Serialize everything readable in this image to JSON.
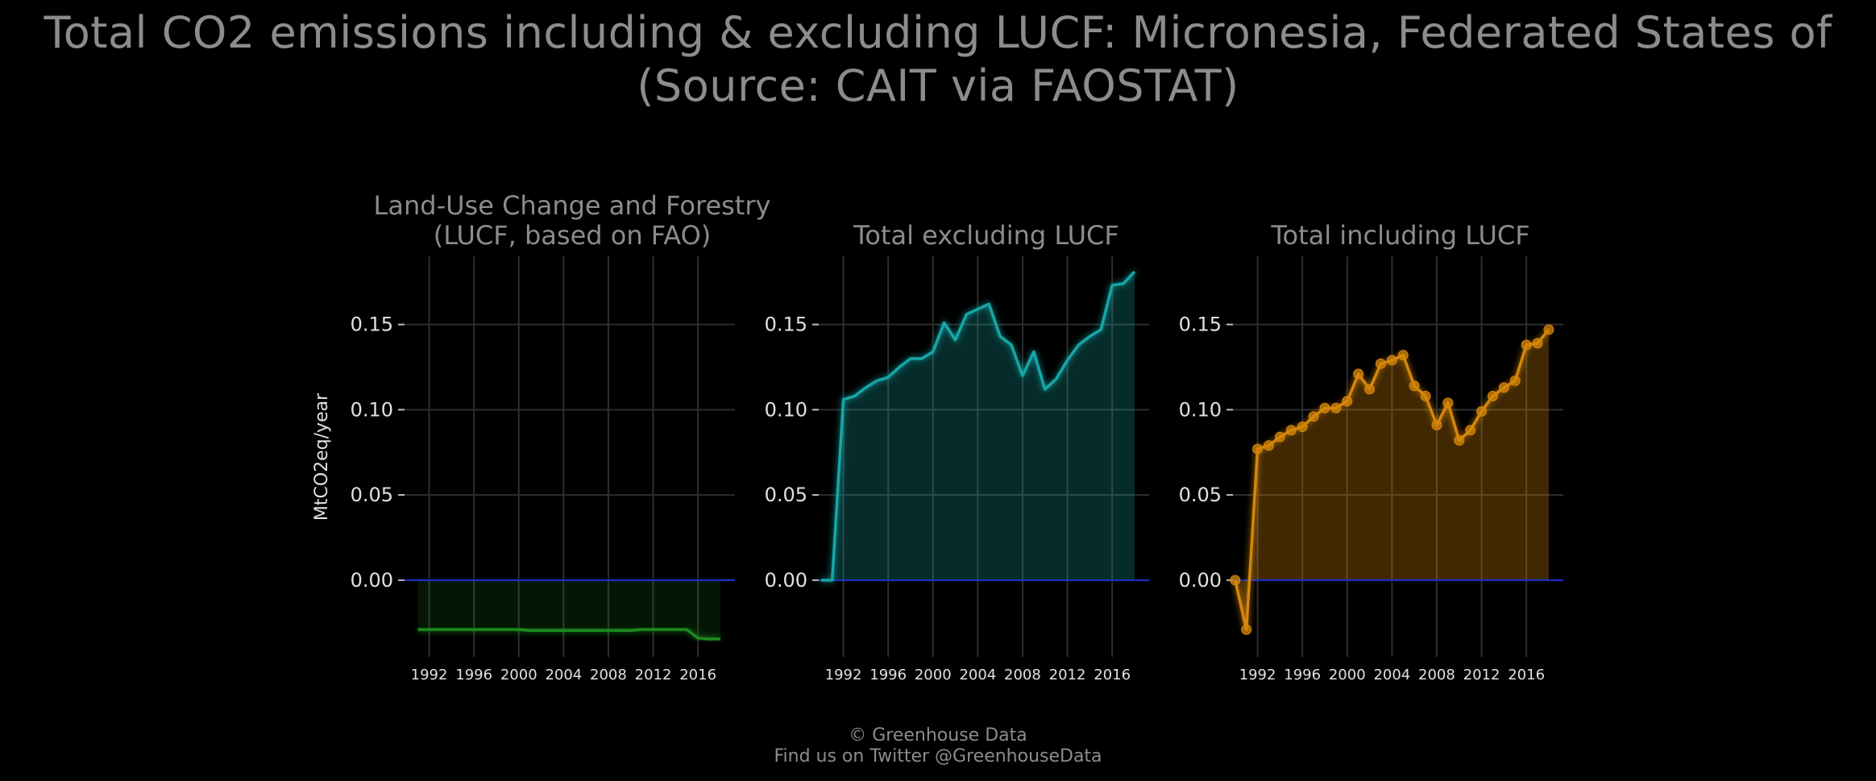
{
  "title_line1": "Total CO2 emissions including & excluding LUCF: Micronesia, Federated States of",
  "title_line2": "(Source: CAIT via FAOSTAT)",
  "footer_line1": "© Greenhouse Data",
  "footer_line2": "Find us on Twitter @GreenhouseData",
  "colors": {
    "background": "#000000",
    "grid": "#2e2e2e",
    "zero_line": "#1a2fd0",
    "lucf": "#1f8a1f",
    "excl": "#16a6a6",
    "incl": "#d4860a"
  },
  "chart_data": [
    {
      "type": "area",
      "title": "Land-Use Change and Forestry\n(LUCF, based on FAO)",
      "ylabel": "MtCO2eq/year",
      "ylim": [
        -0.045,
        0.19
      ],
      "xlim": [
        1989.8,
        2019.3
      ],
      "yticks": [
        "0.00",
        "0.05",
        "0.10",
        "0.15"
      ],
      "ytick_values": [
        0,
        0.05,
        0.1,
        0.15
      ],
      "xticks": [
        "1992",
        "1996",
        "2000",
        "2004",
        "2008",
        "2012",
        "2016"
      ],
      "x": [
        1991,
        1992,
        1993,
        1994,
        1995,
        1996,
        1997,
        1998,
        1999,
        2000,
        2001,
        2002,
        2003,
        2004,
        2005,
        2006,
        2007,
        2008,
        2009,
        2010,
        2011,
        2012,
        2013,
        2014,
        2015,
        2016,
        2017,
        2018
      ],
      "values": [
        -0.029,
        -0.029,
        -0.029,
        -0.029,
        -0.029,
        -0.029,
        -0.029,
        -0.029,
        -0.029,
        -0.029,
        -0.0295,
        -0.0295,
        -0.0295,
        -0.0295,
        -0.0295,
        -0.0295,
        -0.0295,
        -0.0295,
        -0.0295,
        -0.0295,
        -0.029,
        -0.029,
        -0.029,
        -0.029,
        -0.029,
        -0.034,
        -0.0345,
        -0.0345
      ],
      "grid": true
    },
    {
      "type": "area",
      "title": "Total excluding LUCF",
      "ylim": [
        -0.045,
        0.19
      ],
      "xlim": [
        1989.8,
        2019.3
      ],
      "yticks": [
        "0.00",
        "0.05",
        "0.10",
        "0.15"
      ],
      "ytick_values": [
        0,
        0.05,
        0.1,
        0.15
      ],
      "xticks": [
        "1992",
        "1996",
        "2000",
        "2004",
        "2008",
        "2012",
        "2016"
      ],
      "x": [
        1990,
        1991,
        1992,
        1993,
        1994,
        1995,
        1996,
        1997,
        1998,
        1999,
        2000,
        2001,
        2002,
        2003,
        2004,
        2005,
        2006,
        2007,
        2008,
        2009,
        2010,
        2011,
        2012,
        2013,
        2014,
        2015,
        2016,
        2017,
        2018
      ],
      "values": [
        0,
        0,
        0.106,
        0.108,
        0.113,
        0.117,
        0.119,
        0.125,
        0.13,
        0.13,
        0.134,
        0.151,
        0.141,
        0.156,
        0.159,
        0.162,
        0.143,
        0.138,
        0.12,
        0.134,
        0.112,
        0.118,
        0.129,
        0.138,
        0.143,
        0.147,
        0.173,
        0.174,
        0.181
      ],
      "grid": true
    },
    {
      "type": "line",
      "title": "Total including LUCF",
      "ylim": [
        -0.045,
        0.19
      ],
      "xlim": [
        1989.8,
        2019.3
      ],
      "yticks": [
        "0.00",
        "0.05",
        "0.10",
        "0.15"
      ],
      "ytick_values": [
        0,
        0.05,
        0.1,
        0.15
      ],
      "xticks": [
        "1992",
        "1996",
        "2000",
        "2004",
        "2008",
        "2012",
        "2016"
      ],
      "x": [
        1990,
        1991,
        1992,
        1993,
        1994,
        1995,
        1996,
        1997,
        1998,
        1999,
        2000,
        2001,
        2002,
        2003,
        2004,
        2005,
        2006,
        2007,
        2008,
        2009,
        2010,
        2011,
        2012,
        2013,
        2014,
        2015,
        2016,
        2017,
        2018
      ],
      "values": [
        0,
        -0.029,
        0.077,
        0.079,
        0.084,
        0.088,
        0.09,
        0.096,
        0.101,
        0.101,
        0.105,
        0.121,
        0.112,
        0.127,
        0.129,
        0.132,
        0.114,
        0.108,
        0.091,
        0.104,
        0.082,
        0.088,
        0.099,
        0.108,
        0.113,
        0.117,
        0.138,
        0.139,
        0.147
      ],
      "markers": true,
      "grid": true
    }
  ]
}
